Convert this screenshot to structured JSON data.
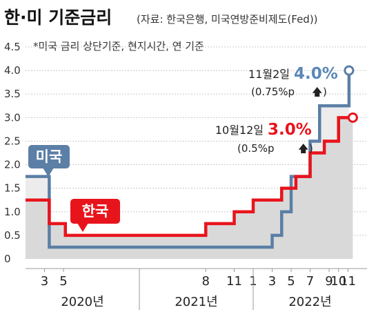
{
  "chart_data": {
    "type": "line",
    "step": true,
    "title": "한·미 기준금리",
    "source": "(자료: 한국은행, 미국연방준비제도(Fed))",
    "subtitle": "*미국 금리 상단기준, 현지시간, 연 기준",
    "yticks": [
      "4.5",
      "4.0",
      "3.5",
      "3.0",
      "2.5",
      "2.0",
      "1.5",
      "1.0",
      "0.5",
      "0"
    ],
    "ylim": [
      0,
      4.5
    ],
    "xlim": [
      0,
      36
    ],
    "xticks": [
      {
        "x": 2,
        "label": "3"
      },
      {
        "x": 4,
        "label": "5"
      },
      {
        "x": 19,
        "label": "8"
      },
      {
        "x": 22,
        "label": "11"
      },
      {
        "x": 24,
        "label": "1"
      },
      {
        "x": 26,
        "label": "3"
      },
      {
        "x": 28,
        "label": "5"
      },
      {
        "x": 30,
        "label": "7"
      },
      {
        "x": 32,
        "label": "9"
      },
      {
        "x": 33,
        "label": "10"
      },
      {
        "x": 34,
        "label": "11"
      }
    ],
    "years": [
      {
        "label": "2020년",
        "start": 0,
        "end": 12
      },
      {
        "label": "2021년",
        "start": 12,
        "end": 24
      },
      {
        "label": "2022년",
        "start": 24,
        "end": 36
      }
    ],
    "grid": true,
    "series": [
      {
        "name": "미국",
        "color": "#5b7fa6",
        "x": [
          0,
          2.1,
          2.5,
          26,
          27,
          28,
          30,
          31,
          33,
          34.1
        ],
        "y": [
          1.75,
          1.75,
          0.25,
          0.5,
          1.0,
          1.75,
          2.5,
          3.25,
          3.25,
          4.0
        ]
      },
      {
        "name": "한국",
        "color": "#e8141c",
        "x": [
          0,
          2.5,
          4.2,
          19,
          22,
          24,
          27,
          28.5,
          30,
          31.5,
          33,
          34.5
        ],
        "y": [
          1.25,
          0.75,
          0.5,
          0.75,
          1.0,
          1.25,
          1.5,
          1.75,
          2.25,
          2.5,
          3.0,
          3.0
        ]
      }
    ],
    "annotations": [
      {
        "series": "미국",
        "date": "11월2일",
        "value": "4.0%",
        "delta": "(0.75%p",
        "arrow": "🡅"
      },
      {
        "series": "한국",
        "date": "10월12일",
        "value": "3.0%",
        "delta": "(0.5%p",
        "arrow": "🡅"
      }
    ]
  }
}
